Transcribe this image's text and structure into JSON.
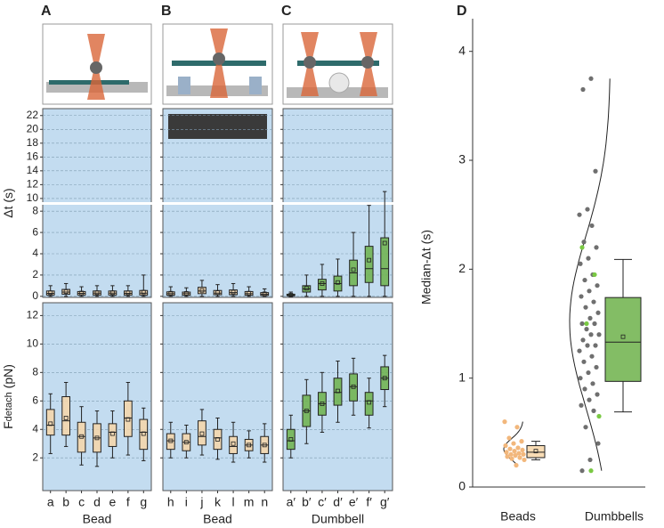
{
  "chart_data": [
    {
      "type": "box",
      "panel": "A",
      "ylabel": "Δt (s)",
      "color": "#f2b77c",
      "box_color": "#f7d6a8",
      "ylim": [
        -0.1,
        8.6
      ],
      "ylim_upper": [
        9.6,
        23
      ],
      "yticks": [
        0,
        2,
        4,
        6,
        8,
        10,
        12,
        14,
        16,
        18,
        20,
        22
      ],
      "show_tick_labels": true,
      "grid": true,
      "boxes": [
        {
          "low": 0,
          "q1": 0.12,
          "median": 0.28,
          "q3": 0.5,
          "high": 1.0,
          "mean": 0.35
        },
        {
          "low": 0,
          "q1": 0.2,
          "median": 0.4,
          "q3": 0.65,
          "high": 1.2,
          "mean": 0.45
        },
        {
          "low": 0,
          "q1": 0.12,
          "median": 0.28,
          "q3": 0.45,
          "high": 0.9,
          "mean": 0.32
        },
        {
          "low": 0,
          "q1": 0.12,
          "median": 0.3,
          "q3": 0.5,
          "high": 1.0,
          "mean": 0.35
        },
        {
          "low": 0,
          "q1": 0.12,
          "median": 0.3,
          "q3": 0.5,
          "high": 1.0,
          "mean": 0.35
        },
        {
          "low": 0,
          "q1": 0.12,
          "median": 0.28,
          "q3": 0.5,
          "high": 1.0,
          "mean": 0.34
        },
        {
          "low": 0,
          "q1": 0.12,
          "median": 0.3,
          "q3": 0.55,
          "high": 2.0,
          "mean": 0.4
        }
      ]
    },
    {
      "type": "box",
      "ylabel": "F",
      "ylabel_sub": "detach",
      "ylabel_unit": "(pN)",
      "xlabel": "Bead",
      "color": "#f2b77c",
      "box_color": "#f7d6a8",
      "ylim": [
        -0.3,
        12.9
      ],
      "yticks": [
        2,
        4,
        6,
        8,
        10,
        12
      ],
      "show_tick_labels": true,
      "grid": true,
      "categories": [
        "a",
        "b",
        "c",
        "d",
        "e",
        "f",
        "g"
      ],
      "boxes": [
        {
          "low": 2.3,
          "q1": 3.6,
          "median": 4.3,
          "q3": 5.4,
          "high": 6.5,
          "mean": 4.4
        },
        {
          "low": 2.8,
          "q1": 3.6,
          "median": 4.6,
          "q3": 6.3,
          "high": 7.3,
          "mean": 4.8
        },
        {
          "low": 1.5,
          "q1": 2.4,
          "median": 3.5,
          "q3": 4.5,
          "high": 5.6,
          "mean": 3.5
        },
        {
          "low": 1.4,
          "q1": 2.4,
          "median": 3.4,
          "q3": 4.4,
          "high": 5.3,
          "mean": 3.4
        },
        {
          "low": 2.0,
          "q1": 2.8,
          "median": 3.8,
          "q3": 4.4,
          "high": 5.3,
          "mean": 3.7
        },
        {
          "low": 2.2,
          "q1": 3.5,
          "median": 4.8,
          "q3": 6.0,
          "high": 7.3,
          "mean": 4.7
        },
        {
          "low": 1.8,
          "q1": 2.6,
          "median": 3.8,
          "q3": 4.7,
          "high": 5.5,
          "mean": 3.7
        }
      ]
    },
    {
      "type": "box",
      "panel": "B",
      "color": "#f2b77c",
      "box_color": "#f7d6a8",
      "ylim": [
        -0.1,
        8.6
      ],
      "ylim_upper": [
        9.6,
        23
      ],
      "yticks": [
        0,
        2,
        4,
        6,
        8,
        10,
        12,
        14,
        16,
        18,
        20,
        22
      ],
      "show_tick_labels": false,
      "grid": true,
      "boxes": [
        {
          "low": 0,
          "q1": 0.1,
          "median": 0.25,
          "q3": 0.42,
          "high": 0.9,
          "mean": 0.3
        },
        {
          "low": 0,
          "q1": 0.1,
          "median": 0.25,
          "q3": 0.4,
          "high": 0.8,
          "mean": 0.28
        },
        {
          "low": 0,
          "q1": 0.25,
          "median": 0.5,
          "q3": 0.85,
          "high": 1.5,
          "mean": 0.55
        },
        {
          "low": 0,
          "q1": 0.15,
          "median": 0.3,
          "q3": 0.55,
          "high": 1.1,
          "mean": 0.35
        },
        {
          "low": 0,
          "q1": 0.15,
          "median": 0.35,
          "q3": 0.6,
          "high": 1.2,
          "mean": 0.4
        },
        {
          "low": 0,
          "q1": 0.1,
          "median": 0.25,
          "q3": 0.45,
          "high": 0.9,
          "mean": 0.3
        },
        {
          "low": 0,
          "q1": 0.08,
          "median": 0.2,
          "q3": 0.35,
          "high": 0.7,
          "mean": 0.24
        }
      ]
    },
    {
      "type": "box",
      "xlabel": "Bead",
      "color": "#f2b77c",
      "box_color": "#f7d6a8",
      "ylim": [
        -0.3,
        12.9
      ],
      "yticks": [
        2,
        4,
        6,
        8,
        10,
        12
      ],
      "show_tick_labels": false,
      "grid": true,
      "categories": [
        "h",
        "i",
        "j",
        "k",
        "l",
        "m",
        "n"
      ],
      "boxes": [
        {
          "low": 2.0,
          "q1": 2.6,
          "median": 3.2,
          "q3": 3.7,
          "high": 4.5,
          "mean": 3.2
        },
        {
          "low": 2.0,
          "q1": 2.5,
          "median": 3.1,
          "q3": 3.7,
          "high": 4.3,
          "mean": 3.1
        },
        {
          "low": 2.2,
          "q1": 2.9,
          "median": 3.5,
          "q3": 4.6,
          "high": 5.4,
          "mean": 3.7
        },
        {
          "low": 1.9,
          "q1": 2.6,
          "median": 3.4,
          "q3": 4.0,
          "high": 4.8,
          "mean": 3.3
        },
        {
          "low": 1.7,
          "q1": 2.3,
          "median": 2.8,
          "q3": 3.5,
          "high": 4.5,
          "mean": 3.0
        },
        {
          "low": 2.0,
          "q1": 2.5,
          "median": 2.9,
          "q3": 3.3,
          "high": 3.9,
          "mean": 2.9
        },
        {
          "low": 1.7,
          "q1": 2.3,
          "median": 2.9,
          "q3": 3.5,
          "high": 4.4,
          "mean": 2.9
        }
      ]
    },
    {
      "type": "box",
      "panel": "C",
      "color": "#3f8f25",
      "box_color": "#6db24a",
      "ylim": [
        -0.1,
        8.6
      ],
      "ylim_upper": [
        9.6,
        23
      ],
      "yticks": [
        0,
        2,
        4,
        6,
        8,
        10,
        12,
        14,
        16,
        18,
        20,
        22
      ],
      "show_tick_labels": false,
      "grid": true,
      "boxes": [
        {
          "low": 0,
          "q1": 0.05,
          "median": 0.1,
          "q3": 0.2,
          "high": 0.4,
          "mean": 0.12
        },
        {
          "low": 0,
          "q1": 0.4,
          "median": 0.7,
          "q3": 1.0,
          "high": 2.0,
          "mean": 0.75
        },
        {
          "low": 0,
          "q1": 0.6,
          "median": 1.2,
          "q3": 1.6,
          "high": 3.0,
          "mean": 1.2
        },
        {
          "low": 0,
          "q1": 0.5,
          "median": 1.2,
          "q3": 1.9,
          "high": 3.5,
          "mean": 1.3
        },
        {
          "low": 0,
          "q1": 1.0,
          "median": 2.2,
          "q3": 3.4,
          "high": 6.0,
          "mean": 2.5
        },
        {
          "low": 0,
          "q1": 1.3,
          "median": 2.6,
          "q3": 4.7,
          "high": 9.0,
          "mean": 3.4
        },
        {
          "low": 0,
          "q1": 1.0,
          "median": 2.6,
          "q3": 5.5,
          "high": 11,
          "mean": 5.0
        }
      ]
    },
    {
      "type": "box",
      "xlabel": "Dumbbell",
      "color": "#3f8f25",
      "box_color": "#6db24a",
      "ylim": [
        -0.3,
        12.9
      ],
      "yticks": [
        2,
        4,
        6,
        8,
        10,
        12
      ],
      "show_tick_labels": false,
      "grid": true,
      "categories": [
        "a′",
        "b′",
        "c′",
        "d′",
        "e′",
        "f′",
        "g′"
      ],
      "boxes": [
        {
          "low": 2.0,
          "q1": 2.6,
          "median": 3.2,
          "q3": 4.0,
          "high": 5.0,
          "mean": 3.3
        },
        {
          "low": 3.0,
          "q1": 4.2,
          "median": 5.3,
          "q3": 6.4,
          "high": 7.5,
          "mean": 5.3
        },
        {
          "low": 3.8,
          "q1": 5.0,
          "median": 5.8,
          "q3": 6.6,
          "high": 8.0,
          "mean": 5.8
        },
        {
          "low": 4.5,
          "q1": 5.7,
          "median": 6.6,
          "q3": 7.6,
          "high": 8.8,
          "mean": 6.7
        },
        {
          "low": 5.0,
          "q1": 6.0,
          "median": 7.0,
          "q3": 7.9,
          "high": 9.0,
          "mean": 7.0
        },
        {
          "low": 4.1,
          "q1": 5.0,
          "median": 6.0,
          "q3": 6.6,
          "high": 7.6,
          "mean": 5.9
        },
        {
          "low": 5.6,
          "q1": 6.8,
          "median": 7.6,
          "q3": 8.4,
          "high": 9.2,
          "mean": 7.6
        }
      ]
    },
    {
      "type": "box_points",
      "panel": "D",
      "ylabel": "Median-Δt (s)",
      "categories": [
        "Beads",
        "Dumbbells"
      ],
      "ylim": [
        0,
        4.3
      ],
      "yticks": [
        0,
        1,
        2,
        3,
        4
      ],
      "show_tick_labels": true,
      "grid": false,
      "box_colors": [
        "#f7d6a8",
        "#6db24a"
      ],
      "boxes": [
        {
          "low": 0.25,
          "q1": 0.27,
          "median": 0.32,
          "q3": 0.38,
          "high": 0.42,
          "mean": 0.33
        },
        {
          "low": 0.69,
          "q1": 0.97,
          "median": 1.33,
          "q3": 1.74,
          "high": 2.09,
          "mean": 1.38
        }
      ],
      "series": [
        {
          "category": 0,
          "color": "#f2b77c",
          "values": [
            0.6,
            0.55,
            0.45,
            0.42,
            0.4,
            0.38,
            0.36,
            0.35,
            0.34,
            0.33,
            0.32,
            0.31,
            0.3,
            0.3,
            0.29,
            0.28,
            0.27,
            0.26,
            0.25,
            0.2
          ]
        },
        {
          "category": 1,
          "color": "#6f6f6f",
          "values": [
            3.75,
            3.65,
            2.9,
            2.55,
            2.5,
            2.4,
            2.25,
            2.2,
            2.1,
            2.05,
            1.95,
            1.9,
            1.85,
            1.8,
            1.75,
            1.7,
            1.65,
            1.6,
            1.55,
            1.5,
            1.5,
            1.45,
            1.4,
            1.4,
            1.35,
            1.3,
            1.3,
            1.25,
            1.2,
            1.15,
            1.1,
            1.05,
            1.0,
            0.95,
            0.9,
            0.85,
            0.8,
            0.75,
            0.7,
            0.55,
            0.4,
            0.25,
            0.15
          ]
        },
        {
          "category": 1,
          "color": "#7ac943",
          "values": [
            2.2,
            1.95,
            1.5,
            0.65,
            0.15
          ]
        }
      ]
    }
  ]
}
